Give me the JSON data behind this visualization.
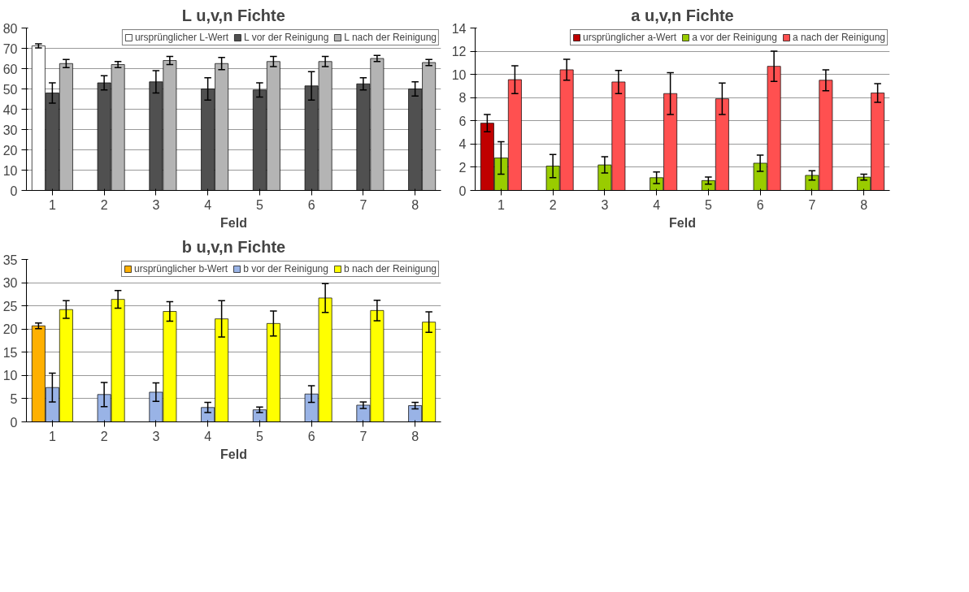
{
  "chart_data": [
    {
      "type": "bar",
      "title": "L u,v,n Fichte",
      "xlabel": "Feld",
      "categories": [
        "1",
        "2",
        "3",
        "4",
        "5",
        "6",
        "7",
        "8"
      ],
      "ylim": [
        0,
        80
      ],
      "yticks": [
        0,
        10,
        20,
        30,
        40,
        50,
        60,
        70,
        80
      ],
      "grid": "y",
      "legend": "top right",
      "series": [
        {
          "name": "ursprünglicher L-Wert",
          "color": "#ffffff",
          "values": [
            71.2,
            null,
            null,
            null,
            null,
            null,
            null,
            null
          ],
          "errors": [
            1,
            null,
            null,
            null,
            null,
            null,
            null,
            null
          ]
        },
        {
          "name": "L vor der Reinigung",
          "color": "#505050",
          "values": [
            48,
            53,
            53.5,
            50,
            49.5,
            51.5,
            52.5,
            50
          ],
          "errors": [
            5,
            3.5,
            5.5,
            5.5,
            3.5,
            7,
            3,
            3.5
          ]
        },
        {
          "name": "L nach der Reinigung",
          "color": "#b4b4b4",
          "values": [
            62.5,
            62,
            64,
            62.5,
            63.5,
            63.5,
            65,
            63
          ],
          "errors": [
            2,
            1.5,
            2,
            3,
            2.5,
            2.5,
            1.5,
            1.5
          ]
        }
      ]
    },
    {
      "type": "bar",
      "title": "a u,v,n Fichte",
      "xlabel": "Feld",
      "categories": [
        "1",
        "2",
        "3",
        "4",
        "5",
        "6",
        "7",
        "8"
      ],
      "ylim": [
        0,
        14
      ],
      "yticks": [
        0,
        2,
        4,
        6,
        8,
        10,
        12,
        14
      ],
      "grid": "y",
      "legend": "top right",
      "series": [
        {
          "name": "ursprünglicher a-Wert",
          "color": "#c00000",
          "values": [
            5.8,
            null,
            null,
            null,
            null,
            null,
            null,
            null
          ],
          "errors": [
            0.75,
            null,
            null,
            null,
            null,
            null,
            null,
            null
          ]
        },
        {
          "name": "a vor der Reinigung",
          "color": "#99cc00",
          "values": [
            2.8,
            2.1,
            2.2,
            1.1,
            0.85,
            2.35,
            1.3,
            1.15
          ],
          "errors": [
            1.4,
            1,
            0.7,
            0.5,
            0.3,
            0.7,
            0.4,
            0.25
          ]
        },
        {
          "name": "a nach der Reinigung",
          "color": "#ff5050",
          "values": [
            9.55,
            10.4,
            9.35,
            8.35,
            7.9,
            10.7,
            9.5,
            8.4
          ],
          "errors": [
            1.2,
            0.9,
            1,
            1.8,
            1.35,
            1.3,
            0.9,
            0.8
          ]
        }
      ]
    },
    {
      "type": "bar",
      "title": "b u,v,n Fichte",
      "xlabel": "Feld",
      "categories": [
        "1",
        "2",
        "3",
        "4",
        "5",
        "6",
        "7",
        "8"
      ],
      "ylim": [
        0,
        35
      ],
      "yticks": [
        0,
        5,
        10,
        15,
        20,
        25,
        30,
        35
      ],
      "grid": "y",
      "legend": "top right",
      "series": [
        {
          "name": "ursprünglicher b-Wert",
          "color": "#ffb000",
          "values": [
            20.7,
            null,
            null,
            null,
            null,
            null,
            null,
            null
          ],
          "errors": [
            0.6,
            null,
            null,
            null,
            null,
            null,
            null,
            null
          ]
        },
        {
          "name": "b vor der Reinigung",
          "color": "#99b3e6",
          "values": [
            7.4,
            5.9,
            6.4,
            3.1,
            2.6,
            6.0,
            3.6,
            3.5
          ],
          "errors": [
            3.1,
            2.6,
            2,
            1.1,
            0.6,
            1.8,
            0.7,
            0.7
          ]
        },
        {
          "name": "b nach der Reinigung",
          "color": "#ffff00",
          "values": [
            24.2,
            26.4,
            23.8,
            22.2,
            21.2,
            26.7,
            24.0,
            21.5
          ],
          "errors": [
            1.9,
            1.9,
            2.1,
            3.9,
            2.7,
            3.1,
            2.2,
            2.2
          ]
        }
      ]
    }
  ]
}
